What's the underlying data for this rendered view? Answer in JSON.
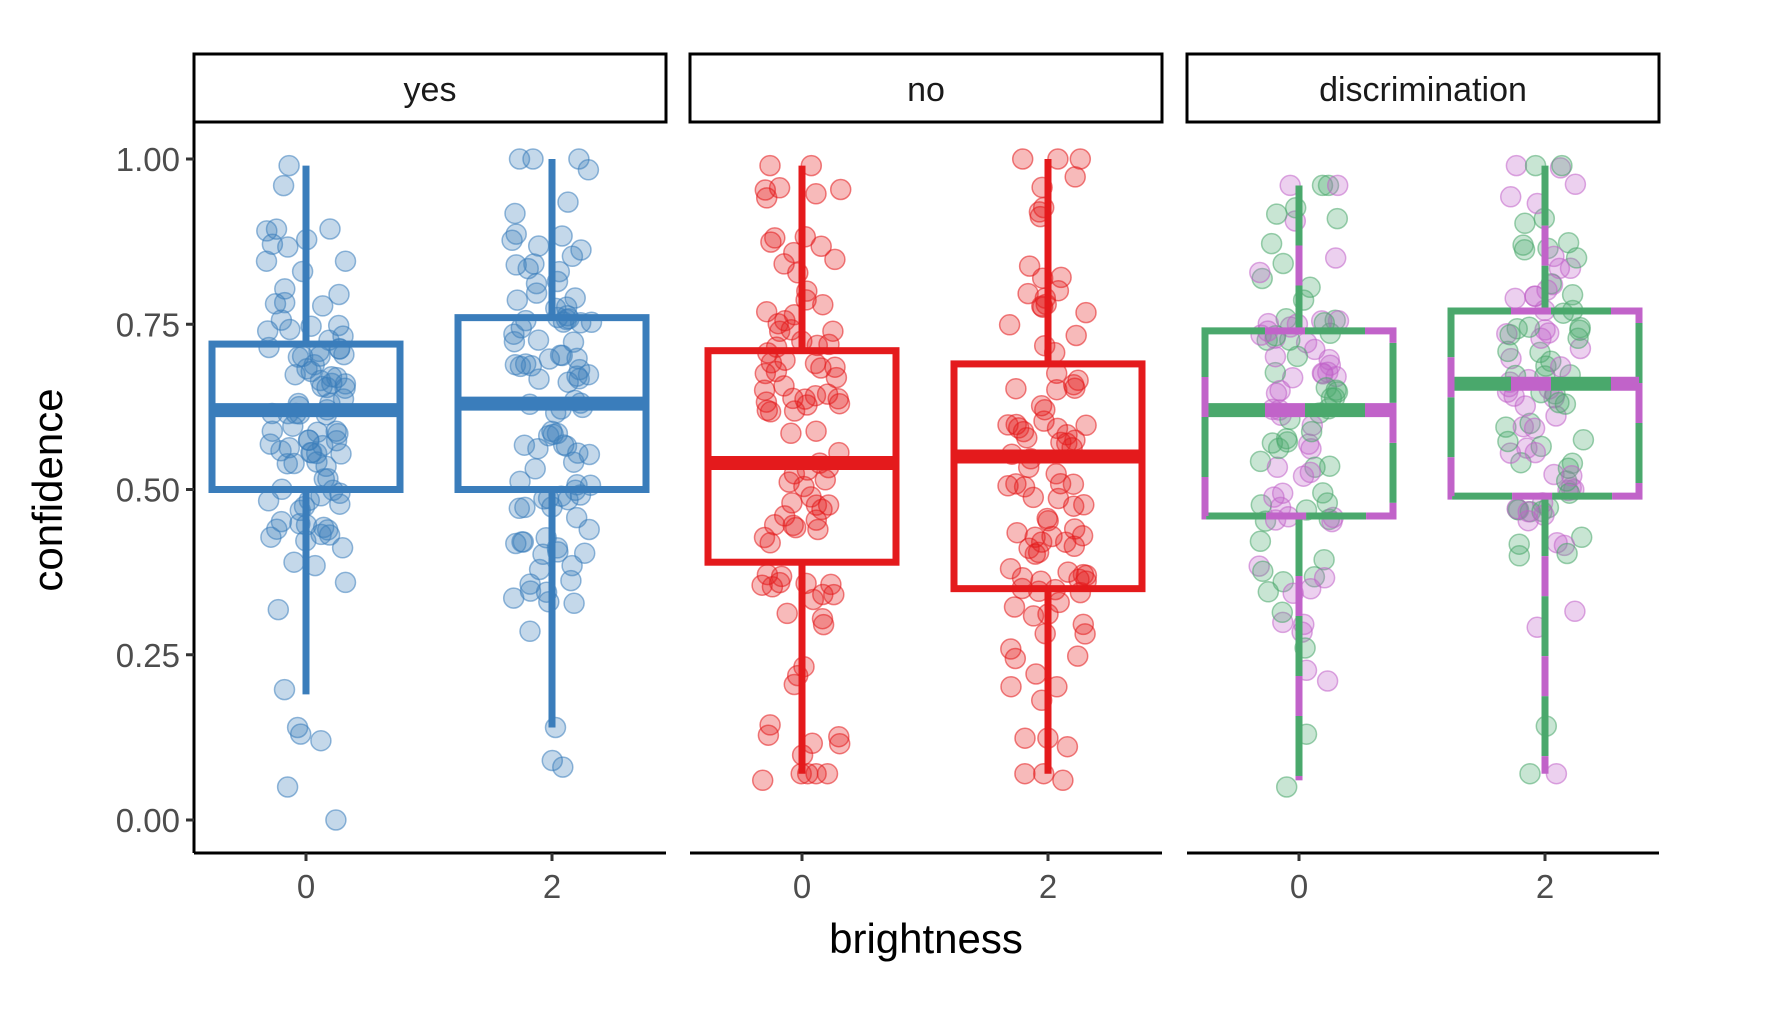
{
  "chart_data": {
    "type": "boxplot",
    "facets": [
      "yes",
      "no",
      "discrimination"
    ],
    "xlabel": "brightness",
    "ylabel": "confidence",
    "x_categories": [
      "0",
      "2"
    ],
    "ylim": [
      0.0,
      1.0
    ],
    "y_ticks": [
      "0.00",
      "0.25",
      "0.50",
      "0.75",
      "1.00"
    ],
    "panels": [
      {
        "facet": "yes",
        "colors": [
          "#3a7dbb"
        ],
        "boxes": [
          {
            "x": "0",
            "whisker_low": 0.19,
            "q1": 0.5,
            "median": 0.62,
            "q3": 0.72,
            "whisker_high": 0.99
          },
          {
            "x": "2",
            "whisker_low": 0.14,
            "q1": 0.5,
            "median": 0.63,
            "q3": 0.76,
            "whisker_high": 1.0
          }
        ],
        "outliers": [
          {
            "x": "0",
            "values": [
              0.0,
              0.05,
              0.12,
              0.13,
              0.14
            ]
          },
          {
            "x": "2",
            "values": [
              0.08,
              0.09,
              0.14
            ]
          }
        ]
      },
      {
        "facet": "no",
        "colors": [
          "#e41a1c"
        ],
        "boxes": [
          {
            "x": "0",
            "whisker_low": 0.07,
            "q1": 0.39,
            "median": 0.54,
            "q3": 0.71,
            "whisker_high": 0.99
          },
          {
            "x": "2",
            "whisker_low": 0.07,
            "q1": 0.35,
            "median": 0.55,
            "q3": 0.69,
            "whisker_high": 1.0
          }
        ],
        "outliers": [
          {
            "x": "0",
            "values": [
              0.06
            ]
          },
          {
            "x": "2",
            "values": [
              0.06
            ]
          }
        ]
      },
      {
        "facet": "discrimination",
        "colors": [
          "#4aa86c",
          "#c163c9"
        ],
        "boxes": [
          {
            "x": "0",
            "whisker_low": 0.06,
            "q1": 0.46,
            "median": 0.62,
            "q3": 0.74,
            "whisker_high": 0.96
          },
          {
            "x": "2",
            "whisker_low": 0.07,
            "q1": 0.49,
            "median": 0.66,
            "q3": 0.77,
            "whisker_high": 0.99
          }
        ],
        "outliers": [
          {
            "x": "0",
            "values": [
              0.05
            ]
          },
          {
            "x": "2",
            "values": [
              0.07
            ]
          }
        ]
      }
    ]
  }
}
